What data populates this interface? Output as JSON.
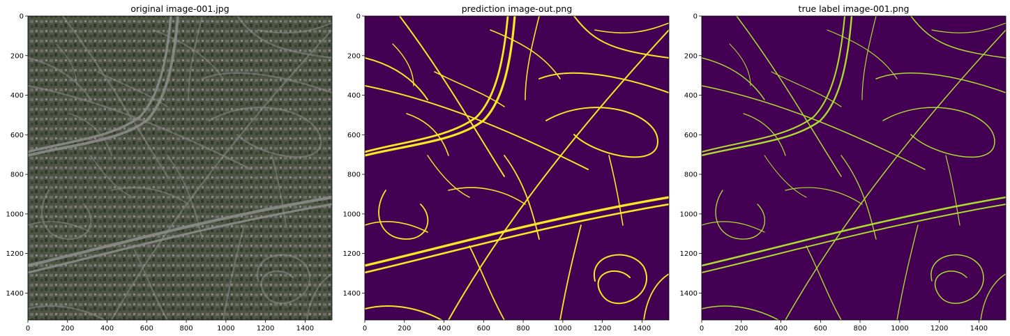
{
  "chart_data": [
    {
      "type": "image",
      "title": "original image-001.jpg",
      "content": "aerial photograph",
      "xlim": [
        0,
        1536
      ],
      "ylim": [
        1536,
        0
      ],
      "xticks": [
        0,
        200,
        400,
        600,
        800,
        1000,
        1200,
        1400
      ],
      "yticks": [
        0,
        200,
        400,
        600,
        800,
        1000,
        1200,
        1400
      ],
      "colors": {
        "ground": "#4a5240",
        "roof": "#7f7f7b",
        "tree": "#2f3a2a",
        "road": "#8c8c88"
      }
    },
    {
      "type": "heatmap",
      "title": "prediction image-out.png",
      "content": "binary road mask",
      "colormap": "viridis",
      "xlim": [
        0,
        1536
      ],
      "ylim": [
        1536,
        0
      ],
      "xticks": [
        0,
        200,
        400,
        600,
        800,
        1000,
        1200,
        1400
      ],
      "yticks": [
        0,
        200,
        400,
        600,
        800,
        1000,
        1200,
        1400
      ],
      "colors": {
        "background": "#440154",
        "road": "#fde725"
      }
    },
    {
      "type": "heatmap",
      "title": "true label image-001.png",
      "content": "binary road mask",
      "colormap": "viridis",
      "xlim": [
        0,
        1536
      ],
      "ylim": [
        1536,
        0
      ],
      "xticks": [
        0,
        200,
        400,
        600,
        800,
        1000,
        1200,
        1400
      ],
      "yticks": [
        0,
        200,
        400,
        600,
        800,
        1000,
        1200,
        1400
      ],
      "colors": {
        "background": "#440154",
        "road": "#addc30"
      }
    }
  ]
}
